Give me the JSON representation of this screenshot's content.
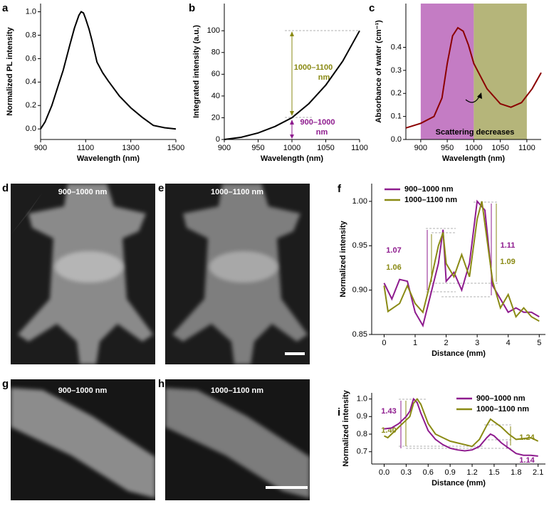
{
  "chart_data": [
    {
      "panel": "a",
      "type": "line",
      "xlabel": "Wavelength (nm)",
      "ylabel": "Normalized PL intensity",
      "xlim": [
        900,
        1500
      ],
      "ylim": [
        -0.09,
        1.07
      ],
      "xticks": [
        900,
        1100,
        1300,
        1500
      ],
      "yticks": [
        {
          "value": 0,
          "label": "0.0"
        },
        0.2,
        0.4,
        0.6,
        0.8,
        {
          "value": 1,
          "label": "1.0"
        }
      ],
      "color": "#000000",
      "x": [
        900,
        920,
        950,
        980,
        1000,
        1030,
        1050,
        1070,
        1080,
        1090,
        1100,
        1115,
        1130,
        1150,
        1175,
        1200,
        1250,
        1300,
        1350,
        1400,
        1450,
        1500
      ],
      "values": [
        0.0,
        0.06,
        0.2,
        0.38,
        0.5,
        0.72,
        0.86,
        0.97,
        1.0,
        0.99,
        0.94,
        0.85,
        0.74,
        0.57,
        0.48,
        0.41,
        0.28,
        0.18,
        0.1,
        0.03,
        0.01,
        0.0
      ]
    },
    {
      "panel": "b",
      "type": "line",
      "xlabel": "Wavelength (nm)",
      "ylabel": "Integrated intensity (a.u.)",
      "xlim": [
        900,
        1100
      ],
      "ylim": [
        0,
        125
      ],
      "xticks": [
        900,
        950,
        1000,
        1050,
        1100
      ],
      "yticks": [
        0,
        20,
        40,
        60,
        80,
        100
      ],
      "color": "#000000",
      "x": [
        900,
        925,
        950,
        975,
        1000,
        1025,
        1050,
        1075,
        1100
      ],
      "values": [
        0,
        2,
        6,
        12,
        20,
        33,
        50,
        72,
        100
      ],
      "annotations": [
        {
          "lines": [
            "1000–1100",
            "nm"
          ]
        },
        {
          "lines": [
            "900–1000",
            "nm"
          ]
        }
      ]
    },
    {
      "panel": "c",
      "type": "line",
      "xlabel": "Wavelength (nm)",
      "ylabel": "Absorbance of water (cm⁻¹)",
      "xlim": [
        872,
        1127
      ],
      "ylim": [
        0,
        0.59
      ],
      "xticks": [
        900,
        950,
        1000,
        1050,
        1100
      ],
      "yticks": [
        {
          "value": 0,
          "label": "0.0"
        },
        0.1,
        0.2,
        0.3,
        0.4
      ],
      "color": "#8b0000",
      "bands": [
        {
          "from": 900,
          "to": 1000,
          "color": "#c47cc4"
        },
        {
          "from": 1000,
          "to": 1100,
          "color": "#b5b57a"
        }
      ],
      "x": [
        872,
        900,
        925,
        940,
        950,
        960,
        970,
        980,
        990,
        1000,
        1025,
        1050,
        1070,
        1090,
        1110,
        1127
      ],
      "values": [
        0.05,
        0.07,
        0.1,
        0.18,
        0.33,
        0.45,
        0.485,
        0.47,
        0.41,
        0.33,
        0.22,
        0.155,
        0.14,
        0.16,
        0.22,
        0.29
      ],
      "annotation": "Scattering decreases"
    },
    {
      "panel": "f",
      "type": "line",
      "xlabel": "Distance (mm)",
      "ylabel": "Normalized intensity",
      "xlim": [
        -0.4,
        5.2
      ],
      "ylim": [
        0.85,
        1.02
      ],
      "xticks": [
        0,
        1,
        2,
        3,
        4,
        5
      ],
      "yticks": [
        0.85,
        {
          "value": 0.9,
          "label": "0.90"
        },
        0.95,
        {
          "value": 1,
          "label": "1.00"
        }
      ],
      "legend": "upper left",
      "series": [
        {
          "name": "900–1000 nm",
          "color": "#8e1b8e",
          "x": [
            0,
            0.25,
            0.5,
            0.75,
            1,
            1.25,
            1.5,
            1.75,
            1.9,
            2,
            2.25,
            2.5,
            2.75,
            3,
            3.25,
            3.5,
            3.75,
            4,
            4.25,
            4.5,
            4.75,
            5
          ],
          "values": [
            0.908,
            0.89,
            0.912,
            0.91,
            0.875,
            0.86,
            0.895,
            0.93,
            0.968,
            0.91,
            0.92,
            0.9,
            0.93,
            1.0,
            0.99,
            0.905,
            0.89,
            0.875,
            0.88,
            0.875,
            0.875,
            0.87
          ]
        },
        {
          "name": "1000–1100 nm",
          "color": "#8a8a14",
          "x": [
            0,
            0.125,
            0.5,
            0.75,
            1,
            1.25,
            1.5,
            1.75,
            1.9,
            2,
            2.25,
            2.5,
            2.75,
            3,
            3.15,
            3.5,
            3.75,
            4,
            4.25,
            4.5,
            4.75,
            5
          ],
          "values": [
            0.905,
            0.876,
            0.885,
            0.905,
            0.885,
            0.875,
            0.91,
            0.95,
            0.965,
            0.93,
            0.915,
            0.94,
            0.915,
            0.98,
            1.0,
            0.91,
            0.88,
            0.895,
            0.87,
            0.88,
            0.87,
            0.865
          ]
        }
      ],
      "annotations": [
        "1.07",
        "1.06",
        "1.11",
        "1.09"
      ]
    },
    {
      "panel": "i",
      "type": "line",
      "xlabel": "Distance (mm)",
      "ylabel": "Normalized intensity",
      "xlim": [
        -0.17,
        2.2
      ],
      "ylim": [
        0.63,
        1.035
      ],
      "xticks": [
        {
          "value": 0,
          "label": "0.0"
        },
        0.3,
        0.6,
        0.9,
        1.2,
        1.5,
        1.8,
        2.1
      ],
      "yticks": [
        0.7,
        0.8,
        0.9,
        {
          "value": 1,
          "label": "1.0"
        }
      ],
      "legend": "upper right",
      "series": [
        {
          "name": "900–1000 nm",
          "color": "#8e1b8e",
          "x": [
            0,
            0.1,
            0.2,
            0.3,
            0.35,
            0.4,
            0.45,
            0.5,
            0.6,
            0.7,
            0.8,
            0.9,
            1,
            1.1,
            1.2,
            1.3,
            1.4,
            1.45,
            1.5,
            1.6,
            1.7,
            1.8,
            1.9,
            2,
            2.1
          ],
          "values": [
            0.83,
            0.835,
            0.86,
            0.9,
            0.93,
            1.0,
            0.98,
            0.92,
            0.82,
            0.77,
            0.74,
            0.72,
            0.71,
            0.705,
            0.71,
            0.73,
            0.78,
            0.8,
            0.79,
            0.75,
            0.72,
            0.69,
            0.68,
            0.68,
            0.675
          ]
        },
        {
          "name": "1000–1100 nm",
          "color": "#8a8a14",
          "x": [
            0,
            0.05,
            0.1,
            0.2,
            0.3,
            0.35,
            0.4,
            0.45,
            0.5,
            0.6,
            0.7,
            0.8,
            0.9,
            1,
            1.1,
            1.2,
            1.3,
            1.4,
            1.45,
            1.5,
            1.6,
            1.7,
            1.8,
            1.9,
            2,
            2.1
          ],
          "values": [
            0.79,
            0.78,
            0.8,
            0.84,
            0.88,
            0.9,
            0.975,
            1.0,
            0.97,
            0.86,
            0.8,
            0.78,
            0.76,
            0.75,
            0.74,
            0.73,
            0.77,
            0.85,
            0.885,
            0.87,
            0.84,
            0.8,
            0.77,
            0.775,
            0.78,
            0.76
          ]
        }
      ],
      "annotations": [
        "1.43",
        "1.40",
        "1.24",
        "1.14"
      ]
    }
  ],
  "images": [
    {
      "panel": "d",
      "label": "900–1000 nm"
    },
    {
      "panel": "e",
      "label": "1000–1100 nm"
    },
    {
      "panel": "g",
      "label": "900–1000 nm"
    },
    {
      "panel": "h",
      "label": "1000–1100 nm"
    }
  ]
}
